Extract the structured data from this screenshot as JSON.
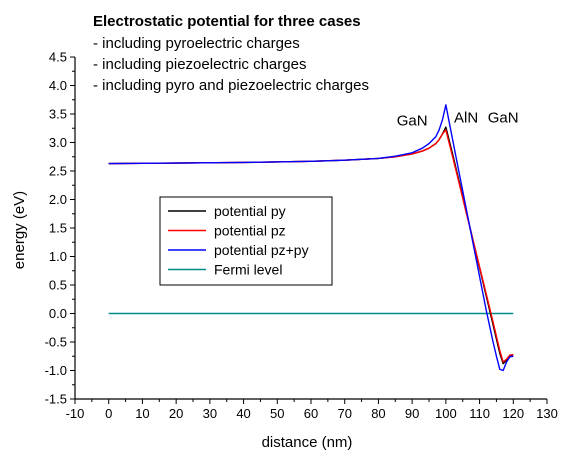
{
  "chart_data": {
    "type": "line",
    "title": "Electrostatic potential for three cases",
    "subtitle_lines": [
      "- including pyroelectric charges",
      "- including piezoelectric charges",
      "- including pyro and piezoelectric charges"
    ],
    "xlabel": "distance (nm)",
    "ylabel": "energy (eV)",
    "xlim": [
      -10,
      130
    ],
    "ylim": [
      -1.5,
      4.5
    ],
    "xticks": [
      -10,
      0,
      10,
      20,
      30,
      40,
      50,
      60,
      70,
      80,
      90,
      100,
      110,
      120,
      130
    ],
    "yticks": [
      -1.5,
      -1.0,
      -0.5,
      0.0,
      0.5,
      1.0,
      1.5,
      2.0,
      2.5,
      3.0,
      3.5,
      4.0,
      4.5
    ],
    "ytick_labels": [
      "-1.5",
      "-1.0",
      "-0.5",
      "0.0",
      "0.5",
      "1.0",
      "1.5",
      "2.0",
      "2.5",
      "3.0",
      "3.5",
      "4.0",
      "4.5"
    ],
    "grid": false,
    "legend_position": "center-left",
    "annotations": [
      {
        "text": "GaN",
        "x": 90,
        "y": 3.3
      },
      {
        "text": "AlN",
        "x": 106,
        "y": 3.35
      },
      {
        "text": "GaN",
        "x": 117,
        "y": 3.35
      }
    ],
    "series": [
      {
        "name": "potential py",
        "color": "#000000",
        "x": [
          0,
          20,
          40,
          60,
          70,
          80,
          85,
          90,
          93,
          95,
          97,
          98,
          99,
          100,
          102,
          104,
          106,
          108,
          110,
          112,
          114,
          115,
          116,
          117,
          118,
          119,
          120
        ],
        "y": [
          2.63,
          2.64,
          2.65,
          2.67,
          2.69,
          2.72,
          2.75,
          2.8,
          2.85,
          2.9,
          2.98,
          3.05,
          3.15,
          3.27,
          2.8,
          2.3,
          1.8,
          1.3,
          0.8,
          0.3,
          -0.2,
          -0.45,
          -0.7,
          -0.88,
          -0.82,
          -0.74,
          -0.73
        ]
      },
      {
        "name": "potential pz",
        "color": "#ff0000",
        "x": [
          0,
          20,
          40,
          60,
          70,
          80,
          85,
          90,
          93,
          95,
          97,
          98,
          99,
          100,
          102,
          104,
          106,
          108,
          110,
          112,
          114,
          115,
          116,
          117,
          118,
          119,
          120
        ],
        "y": [
          2.63,
          2.64,
          2.65,
          2.67,
          2.69,
          2.72,
          2.75,
          2.8,
          2.85,
          2.9,
          2.98,
          3.05,
          3.15,
          3.22,
          2.75,
          2.27,
          1.78,
          1.3,
          0.82,
          0.34,
          -0.15,
          -0.4,
          -0.65,
          -0.85,
          -0.8,
          -0.73,
          -0.72
        ]
      },
      {
        "name": "potential pz+py",
        "color": "#0000ff",
        "x": [
          0,
          20,
          40,
          60,
          70,
          80,
          85,
          90,
          93,
          95,
          97,
          98,
          99,
          100,
          102,
          104,
          106,
          108,
          110,
          112,
          114,
          115,
          116,
          117,
          118,
          119,
          120
        ],
        "y": [
          2.63,
          2.64,
          2.65,
          2.67,
          2.69,
          2.72,
          2.76,
          2.82,
          2.9,
          2.98,
          3.1,
          3.22,
          3.4,
          3.66,
          3.05,
          2.45,
          1.85,
          1.25,
          0.65,
          0.05,
          -0.5,
          -0.75,
          -0.98,
          -1.0,
          -0.85,
          -0.76,
          -0.75
        ]
      },
      {
        "name": "Fermi level",
        "color": "#008b8b",
        "x": [
          0,
          120
        ],
        "y": [
          0.0,
          0.0
        ]
      }
    ]
  }
}
